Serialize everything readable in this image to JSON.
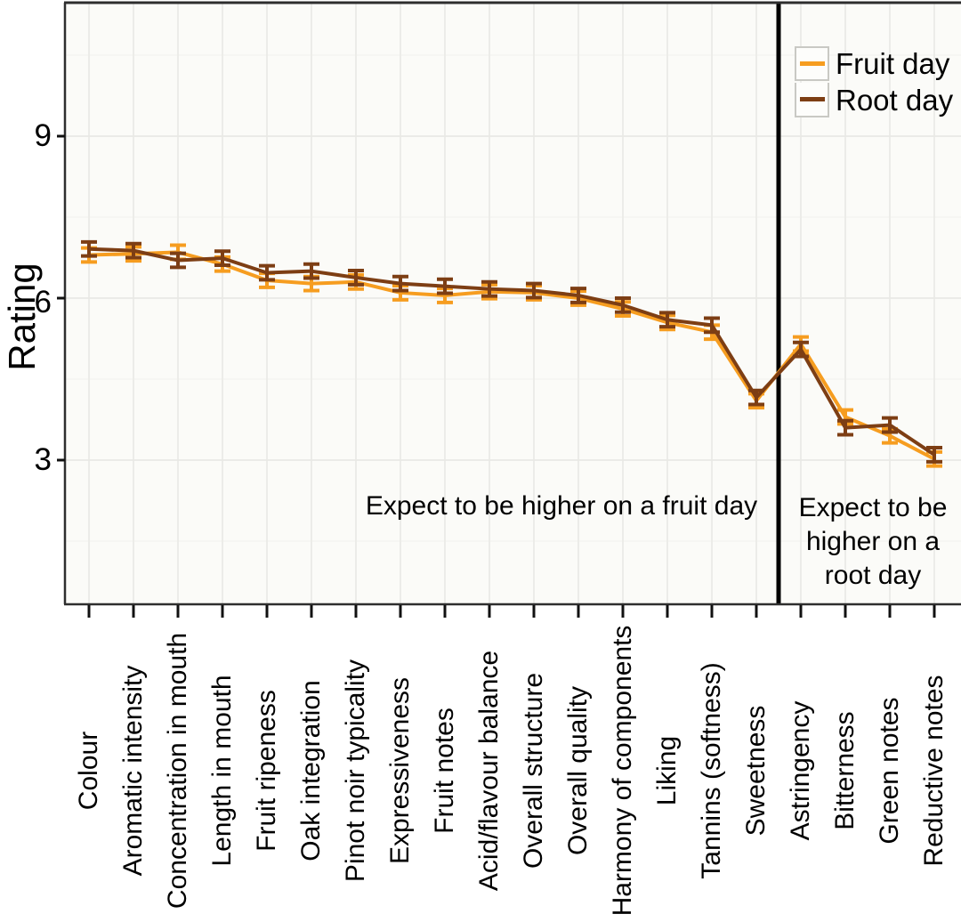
{
  "chart_data": {
    "type": "line",
    "title": "",
    "xlabel": "",
    "ylabel": "Rating",
    "yticks": [
      3,
      6,
      9
    ],
    "ylim": [
      0.3,
      11.5
    ],
    "grid": true,
    "legend_position": "top-right",
    "categories": [
      "Colour",
      "Aromatic intensity",
      "Concentration in mouth",
      "Length in mouth",
      "Fruit ripeness",
      "Oak integration",
      "Pinot noir typicality",
      "Expressiveness",
      "Fruit notes",
      "Acid/flavour balance",
      "Overall structure",
      "Overall quality",
      "Harmony of components",
      "Liking",
      "Tannins (softness)",
      "Sweetness",
      "Astringency",
      "Bitterness",
      "Green notes",
      "Reductive notes"
    ],
    "series": [
      {
        "name": "Fruit day",
        "color": "#F69D20",
        "error": 0.13,
        "values": [
          6.8,
          6.82,
          6.85,
          6.63,
          6.33,
          6.27,
          6.3,
          6.1,
          6.05,
          6.12,
          6.1,
          6.0,
          5.8,
          5.55,
          5.37,
          4.1,
          5.15,
          3.8,
          3.45,
          3.02
        ]
      },
      {
        "name": "Root day",
        "color": "#7D3E14",
        "error": 0.13,
        "values": [
          6.91,
          6.88,
          6.7,
          6.74,
          6.47,
          6.5,
          6.38,
          6.27,
          6.22,
          6.17,
          6.14,
          6.05,
          5.87,
          5.6,
          5.5,
          4.16,
          5.05,
          3.6,
          3.65,
          3.1
        ]
      }
    ],
    "divider": {
      "after_category": "Sweetness",
      "color": "#000000"
    },
    "annotations": [
      {
        "text": "Expect to be higher on a fruit day",
        "region": "left-of-divider"
      },
      {
        "text": "Expect to be higher on a root day",
        "lines": [
          "Expect to be",
          "higher on a",
          "root day"
        ],
        "region": "right-of-divider"
      }
    ]
  }
}
